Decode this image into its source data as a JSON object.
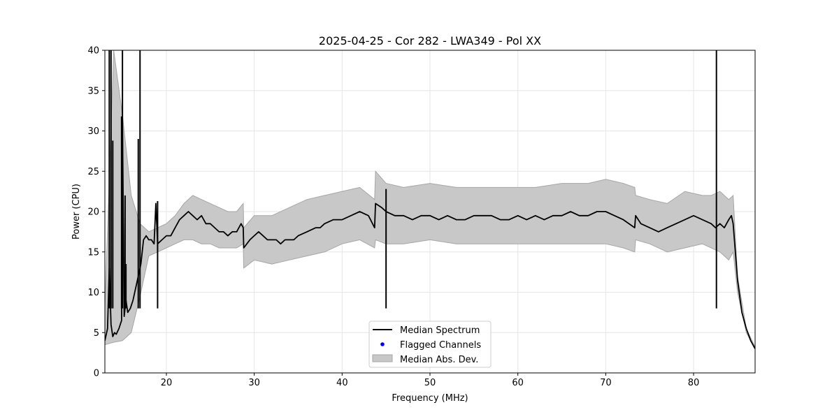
{
  "chart_data": {
    "type": "line",
    "title": "2025-04-25 - Cor 282 - LWA349 - Pol XX",
    "xlabel": "Frequency (MHz)",
    "ylabel": "Power (CPU)",
    "xlim": [
      13,
      87
    ],
    "ylim": [
      0,
      40
    ],
    "xticks": [
      20,
      30,
      40,
      50,
      60,
      70,
      80
    ],
    "yticks": [
      0,
      5,
      10,
      15,
      20,
      25,
      30,
      35,
      40
    ],
    "grid": true,
    "legend_position": "lower-center",
    "legend": [
      "Median Spectrum",
      "Flagged Channels",
      "Median Abs. Dev."
    ],
    "colors": {
      "median": "#000000",
      "flagged": "#0000ff",
      "mad_fill": "#c8c8c8",
      "mad_edge": "#a6a6a6"
    },
    "series": [
      {
        "name": "Median Spectrum",
        "x": [
          13.0,
          13.3,
          13.5,
          13.7,
          13.9,
          14.1,
          14.3,
          14.6,
          14.9,
          15.0,
          15.2,
          15.4,
          15.6,
          15.9,
          16.2,
          16.5,
          16.8,
          17.1,
          17.4,
          17.7,
          18.0,
          18.3,
          18.6,
          18.8,
          19.0,
          19.5,
          20.0,
          20.5,
          21.0,
          21.5,
          22.0,
          22.5,
          23.0,
          23.5,
          24.0,
          24.5,
          25.0,
          25.5,
          26.0,
          26.5,
          27.0,
          27.5,
          28.0,
          28.5,
          28.75,
          28.8,
          29.5,
          30.0,
          30.5,
          31.0,
          31.5,
          32.0,
          32.5,
          33.0,
          33.5,
          34.0,
          34.5,
          35.0,
          36.0,
          37.0,
          37.5,
          38.0,
          39.0,
          40.0,
          41.0,
          42.0,
          43.0,
          43.7,
          43.8,
          44.5,
          45.0,
          46.0,
          47.0,
          48.0,
          49.0,
          50.0,
          51.0,
          52.0,
          53.0,
          54.0,
          55.0,
          56.0,
          57.0,
          58.0,
          59.0,
          60.0,
          61.0,
          62.0,
          63.0,
          64.0,
          65.0,
          66.0,
          67.0,
          68.0,
          69.0,
          70.0,
          71.0,
          72.0,
          73.3,
          73.4,
          74.0,
          75.0,
          76.0,
          77.0,
          78.0,
          79.0,
          80.0,
          81.0,
          82.0,
          82.5,
          83.0,
          83.5,
          84.0,
          84.3,
          84.5,
          85.0,
          85.5,
          86.0,
          86.5,
          87.0
        ],
        "values": [
          4.0,
          5.5,
          13.0,
          6.0,
          4.5,
          5.0,
          4.8,
          5.5,
          6.5,
          31.5,
          7.0,
          9.0,
          7.5,
          8.0,
          9.0,
          10.5,
          12.0,
          13.5,
          16.5,
          17.0,
          16.5,
          16.5,
          16.0,
          21.0,
          16.0,
          16.5,
          17.0,
          17.0,
          18.0,
          19.0,
          19.5,
          20.0,
          19.5,
          19.0,
          19.5,
          18.5,
          18.5,
          18.0,
          17.5,
          17.5,
          17.0,
          17.5,
          17.5,
          18.5,
          18.0,
          15.5,
          16.5,
          17.0,
          17.5,
          17.0,
          16.5,
          16.5,
          16.5,
          16.0,
          16.5,
          16.5,
          16.5,
          17.0,
          17.5,
          18.0,
          18.0,
          18.5,
          19.0,
          19.0,
          19.5,
          20.0,
          19.5,
          18.0,
          21.0,
          20.5,
          20.0,
          19.5,
          19.5,
          19.0,
          19.5,
          19.5,
          19.0,
          19.5,
          19.0,
          19.0,
          19.5,
          19.5,
          19.5,
          19.0,
          19.0,
          19.5,
          19.0,
          19.5,
          19.0,
          19.5,
          19.5,
          20.0,
          19.5,
          19.5,
          20.0,
          20.0,
          19.5,
          19.0,
          18.0,
          19.5,
          18.5,
          18.0,
          17.5,
          18.0,
          18.5,
          19.0,
          19.5,
          19.0,
          18.5,
          18.0,
          18.5,
          18.0,
          19.0,
          19.5,
          18.5,
          11.5,
          7.5,
          5.5,
          4.0,
          3.0
        ],
        "spikes": [
          {
            "x": 13.5,
            "y": 40.0
          },
          {
            "x": 13.7,
            "y": 40.0
          },
          {
            "x": 13.9,
            "y": 28.8
          },
          {
            "x": 14.9,
            "y": 31.8
          },
          {
            "x": 15.0,
            "y": 40.0
          },
          {
            "x": 15.3,
            "y": 22.0
          },
          {
            "x": 15.4,
            "y": 13.5
          },
          {
            "x": 16.8,
            "y": 29.0
          },
          {
            "x": 17.0,
            "y": 40.0
          },
          {
            "x": 19.0,
            "y": 21.3
          },
          {
            "x": 45.0,
            "y": 22.8
          },
          {
            "x": 82.6,
            "y": 40.0
          }
        ]
      },
      {
        "name": "Median Abs. Dev.",
        "x": [
          13.0,
          14.0,
          15.0,
          16.0,
          17.0,
          18.0,
          19.0,
          20.0,
          21.0,
          22.0,
          23.0,
          24.0,
          25.0,
          26.0,
          27.0,
          28.0,
          28.75,
          28.8,
          30.0,
          32.0,
          34.0,
          36.0,
          38.0,
          40.0,
          42.0,
          43.7,
          43.8,
          45.0,
          47.0,
          50.0,
          53.0,
          56.0,
          59.0,
          62.0,
          65.0,
          68.0,
          70.0,
          72.0,
          73.3,
          73.4,
          75.0,
          77.0,
          79.0,
          81.0,
          82.0,
          83.0,
          84.0,
          84.5,
          85.0,
          86.0,
          87.0
        ],
        "lower": [
          3.5,
          3.8,
          4.0,
          5.0,
          9.5,
          14.5,
          15.0,
          15.5,
          16.0,
          16.5,
          16.5,
          16.0,
          16.0,
          15.5,
          15.5,
          15.5,
          16.0,
          13.0,
          14.0,
          13.5,
          14.0,
          14.5,
          15.0,
          16.0,
          16.5,
          15.5,
          16.5,
          16.0,
          16.0,
          16.5,
          16.0,
          16.0,
          16.0,
          16.0,
          16.0,
          16.0,
          16.0,
          15.5,
          15.0,
          16.5,
          16.0,
          15.0,
          15.5,
          16.0,
          15.5,
          15.0,
          14.0,
          15.0,
          10.0,
          5.0,
          3.0
        ],
        "upper": [
          8.0,
          40.0,
          32.0,
          22.0,
          18.5,
          17.5,
          18.0,
          18.5,
          19.5,
          21.0,
          22.0,
          21.5,
          21.0,
          20.5,
          20.0,
          20.0,
          21.0,
          18.0,
          19.5,
          19.5,
          20.5,
          21.5,
          22.0,
          22.5,
          23.0,
          21.5,
          25.0,
          23.5,
          23.0,
          23.5,
          23.0,
          23.0,
          23.0,
          23.0,
          23.5,
          23.5,
          24.0,
          23.5,
          23.0,
          22.0,
          21.5,
          21.0,
          22.5,
          22.0,
          22.0,
          22.5,
          21.5,
          22.0,
          12.0,
          5.5,
          3.2
        ]
      }
    ]
  }
}
